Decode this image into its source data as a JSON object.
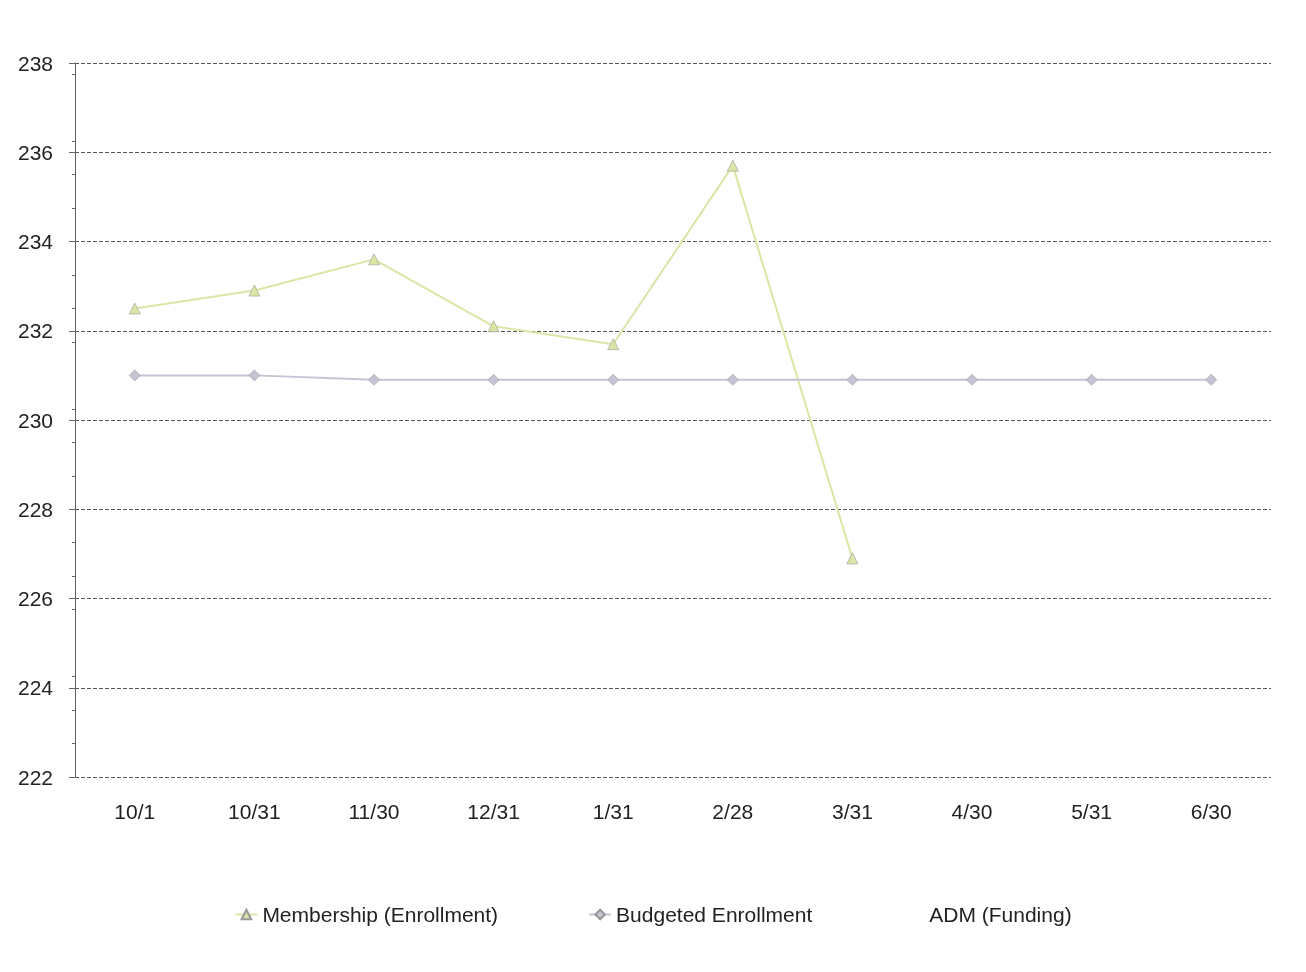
{
  "chart_data": {
    "type": "line",
    "categories": [
      "10/1",
      "10/31",
      "11/30",
      "12/31",
      "1/31",
      "2/28",
      "3/31",
      "4/30",
      "5/31",
      "6/30"
    ],
    "series": [
      {
        "name": "Membership (Enrollment)",
        "color": "#d9e6a6",
        "marker": "triangle",
        "values": [
          232.5,
          232.9,
          233.6,
          232.1,
          231.7,
          235.7,
          226.9,
          null,
          null,
          null
        ]
      },
      {
        "name": "Budgeted Enrollment",
        "color": "#c4c4d4",
        "marker": "diamond",
        "values": [
          231,
          231,
          230.9,
          230.9,
          230.9,
          230.9,
          230.9,
          230.9,
          230.9,
          230.9
        ]
      },
      {
        "name": "ADM (Funding)",
        "marker": "none",
        "values": [
          null,
          null,
          null,
          null,
          null,
          null,
          null,
          null,
          null,
          null
        ]
      }
    ],
    "ylim": [
      222,
      238
    ],
    "yticks": [
      222,
      224,
      226,
      228,
      230,
      232,
      234,
      236,
      238
    ],
    "grid": "y",
    "legend": "bottom"
  }
}
